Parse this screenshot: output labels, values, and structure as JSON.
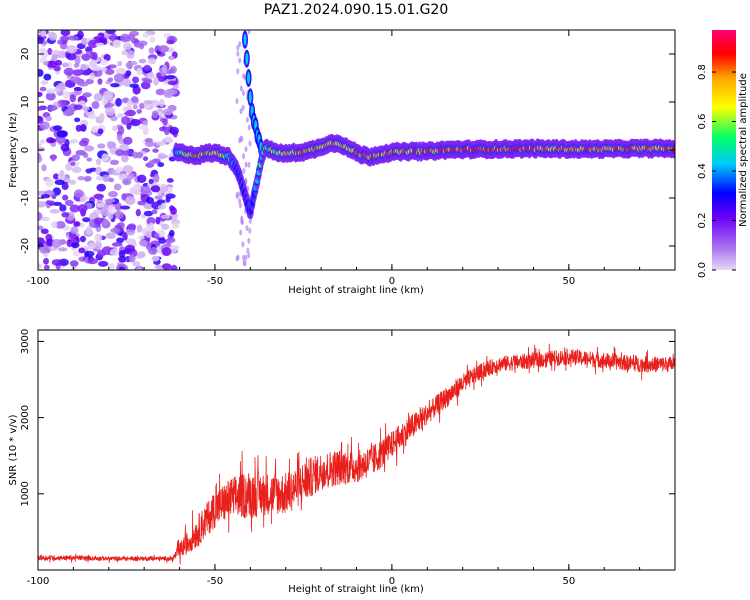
{
  "figure": {
    "title": "PAZ1.2024.090.15.01.G20"
  },
  "colors": {
    "snr_line": "#e8201c",
    "colormap": [
      "#e6d7f5",
      "#a46bf0",
      "#6a00f5",
      "#0000ff",
      "#00c8ff",
      "#00ff66",
      "#ffff00",
      "#ffa500",
      "#ff0000",
      "#ff0077"
    ]
  },
  "chart_data": [
    {
      "type": "heatmap",
      "xlabel": "Height of straight line (km)",
      "ylabel": "Frequency (Hz)",
      "xlim": [
        -100,
        80
      ],
      "ylim": [
        -25,
        25
      ],
      "xticks": [
        -100,
        -50,
        0,
        50
      ],
      "xtick_labels": [
        "-100",
        "-50",
        "0",
        "50"
      ],
      "yticks": [
        -20,
        -10,
        0,
        10,
        20
      ],
      "ytick_labels": [
        "-20",
        "-10",
        "0",
        "10",
        "20"
      ],
      "colorbar": {
        "label": "Normalized spectral amplitude",
        "range": [
          0,
          0.97
        ],
        "ticks": [
          0,
          0.2,
          0.4,
          0.6,
          0.8
        ],
        "tick_labels": [
          "0.0",
          "0.2",
          "0.4",
          "0.6",
          "0.8"
        ]
      },
      "noise_region_x": [
        -100,
        -61
      ],
      "ridge": {
        "x": [
          -61,
          -58,
          -55,
          -52,
          -49,
          -46,
          -44,
          -42,
          -40,
          -38,
          -36,
          -33,
          -30,
          -27,
          -24,
          -21,
          -18,
          -15,
          -12,
          -9,
          -6,
          -3,
          0,
          5,
          10,
          15,
          20,
          30,
          40,
          50,
          60,
          70,
          80
        ],
        "freq": [
          -0.5,
          -0.8,
          -1.2,
          -0.6,
          -0.7,
          -1.5,
          -3.5,
          -8,
          -13,
          -6,
          0.5,
          -0.4,
          -0.8,
          -0.5,
          -0.3,
          0.4,
          1.3,
          1.5,
          0.2,
          -0.9,
          -1.4,
          -0.8,
          -0.5,
          -0.3,
          -0.3,
          0.0,
          0.1,
          0.2,
          0.3,
          0.2,
          0.2,
          0.3,
          0.3
        ],
        "amp": [
          0.4,
          0.8,
          0.85,
          0.8,
          0.8,
          0.55,
          0.35,
          0.3,
          0.3,
          0.5,
          0.6,
          0.75,
          0.8,
          0.85,
          0.9,
          0.85,
          0.8,
          0.85,
          0.85,
          0.9,
          0.95,
          0.9,
          0.85,
          0.9,
          0.95,
          0.9,
          0.95,
          0.95,
          0.95,
          0.9,
          0.9,
          0.9,
          0.9
        ]
      },
      "vertical_feature": {
        "x": [
          -41.5,
          -41.0,
          -40.5,
          -40.0,
          -39.5,
          -39.0,
          -38.5,
          -38.0,
          -37.5,
          -37.0
        ],
        "freq": [
          23,
          19,
          15,
          11,
          8,
          6,
          5,
          3,
          2,
          0.5
        ]
      }
    },
    {
      "type": "line",
      "xlabel": "Height of straight line (km)",
      "ylabel": "SNR (10 * v/v)",
      "xlim": [
        -100,
        80
      ],
      "ylim": [
        0,
        3150
      ],
      "xticks": [
        -100,
        -50,
        0,
        50
      ],
      "xtick_labels": [
        "-100",
        "-50",
        "0",
        "50"
      ],
      "yticks": [
        1000,
        2000,
        3000
      ],
      "ytick_labels": [
        "1000",
        "2000",
        "3000"
      ],
      "series": [
        {
          "x": [
            -100,
            -90,
            -80,
            -70,
            -62,
            -60,
            -55,
            -50,
            -45,
            -40,
            -35,
            -30,
            -25,
            -20,
            -15,
            -10,
            -5,
            0,
            5,
            10,
            15,
            20,
            25,
            30,
            40,
            50,
            60,
            70,
            80
          ],
          "mean": [
            160,
            160,
            150,
            150,
            150,
            250,
            500,
            800,
            950,
            1000,
            1000,
            1000,
            1150,
            1300,
            1350,
            1350,
            1450,
            1650,
            1850,
            2050,
            2250,
            2450,
            2600,
            2700,
            2750,
            2800,
            2750,
            2700,
            2700
          ],
          "noise": [
            50,
            45,
            40,
            40,
            40,
            150,
            300,
            350,
            400,
            450,
            400,
            400,
            400,
            350,
            350,
            300,
            300,
            250,
            250,
            200,
            200,
            180,
            150,
            150,
            150,
            150,
            150,
            150,
            150
          ]
        }
      ]
    }
  ]
}
